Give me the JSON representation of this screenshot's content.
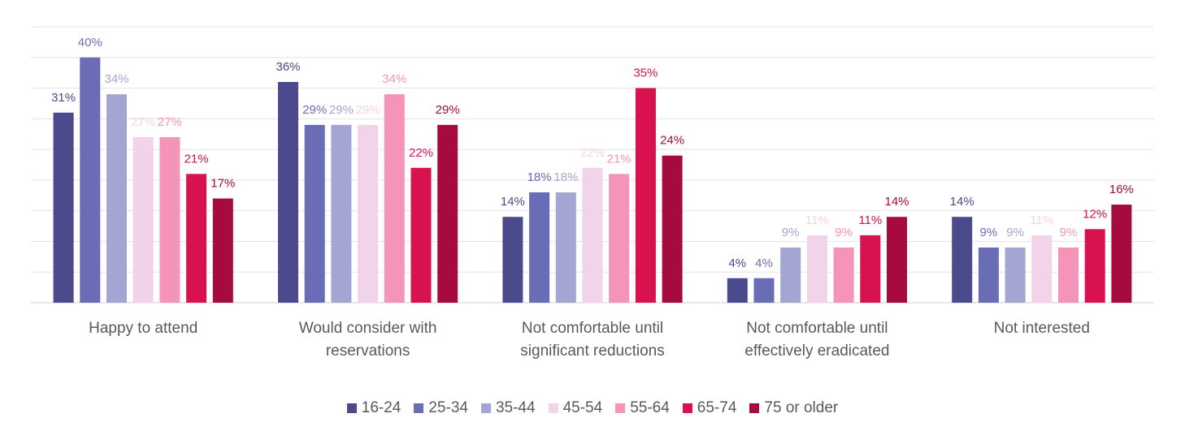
{
  "chart_data": {
    "type": "bar",
    "categories": [
      "Happy to attend",
      "Would consider with reservations",
      "Not comfortable until significant reductions",
      "Not comfortable until effectively eradicated",
      "Not interested"
    ],
    "category_lines": [
      [
        "Happy to attend"
      ],
      [
        "Would consider with",
        "reservations"
      ],
      [
        "Not comfortable until",
        "significant reductions"
      ],
      [
        "Not comfortable until",
        "effectively eradicated"
      ],
      [
        "Not interested"
      ]
    ],
    "series": [
      {
        "name": "16-24",
        "color": "#4a4a8c",
        "values": [
          31,
          36,
          14,
          4,
          14
        ]
      },
      {
        "name": "25-34",
        "color": "#6a6db6",
        "values": [
          40,
          29,
          18,
          4,
          9
        ]
      },
      {
        "name": "35-44",
        "color": "#a3a6d2",
        "values": [
          34,
          29,
          18,
          9,
          9
        ]
      },
      {
        "name": "45-54",
        "color": "#f1d4ea",
        "values": [
          27,
          29,
          22,
          11,
          11
        ]
      },
      {
        "name": "55-64",
        "color": "#f494b8",
        "values": [
          27,
          34,
          21,
          9,
          9
        ]
      },
      {
        "name": "65-74",
        "color": "#d8114f",
        "values": [
          21,
          22,
          35,
          11,
          12
        ]
      },
      {
        "name": "75 or older",
        "color": "#a50b3f",
        "values": [
          17,
          29,
          24,
          14,
          16
        ]
      }
    ],
    "ylim": [
      0,
      45
    ],
    "grid": true,
    "legend_position": "bottom",
    "value_suffix": "%"
  }
}
